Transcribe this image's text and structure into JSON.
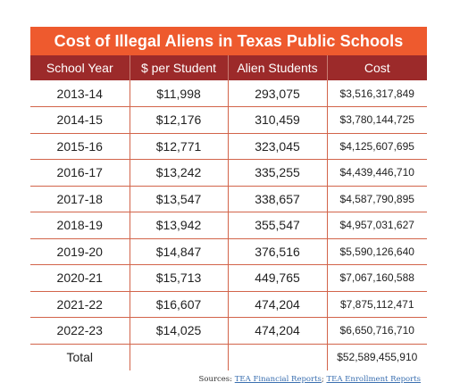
{
  "title": "Cost of Illegal Aliens in Texas Public Schools",
  "columns": [
    "School Year",
    "$ per Student",
    "Alien Students",
    "Cost"
  ],
  "rows": [
    [
      "2013-14",
      "$11,998",
      "293,075",
      "$3,516,317,849"
    ],
    [
      "2014-15",
      "$12,176",
      "310,459",
      "$3,780,144,725"
    ],
    [
      "2015-16",
      "$12,771",
      "323,045",
      "$4,125,607,695"
    ],
    [
      "2016-17",
      "$13,242",
      "335,255",
      "$4,439,446,710"
    ],
    [
      "2017-18",
      "$13,547",
      "338,657",
      "$4,587,790,895"
    ],
    [
      "2018-19",
      "$13,942",
      "355,547",
      "$4,957,031,627"
    ],
    [
      "2019-20",
      "$14,847",
      "376,516",
      "$5,590,126,640"
    ],
    [
      "2020-21",
      "$15,713",
      "449,765",
      "$7,067,160,588"
    ],
    [
      "2021-22",
      "$16,607",
      "474,204",
      "$7,875,112,471"
    ],
    [
      "2022-23",
      "$14,025",
      "474,204",
      "$6,650,716,710"
    ]
  ],
  "total": {
    "label": "Total",
    "cost": "$52,589,455,910"
  },
  "sources": {
    "prefix": "Sources: ",
    "link1": "TEA Financial Reports",
    "separator": "; ",
    "link2": "TEA Enrollment Reports"
  },
  "colors": {
    "title_bg": "#ee5a2e",
    "header_bg": "#9c2a2a",
    "row_border": "#d2644a",
    "link": "#3a6fb0"
  }
}
